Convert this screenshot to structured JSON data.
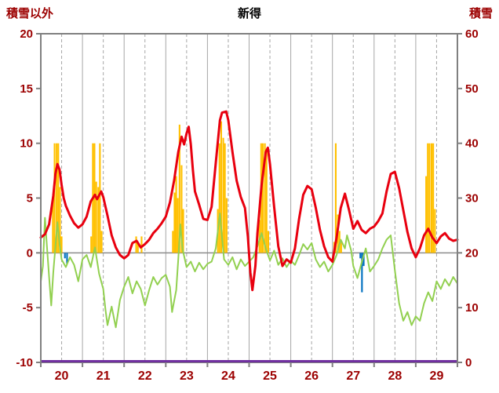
{
  "header": {
    "left_axis_title": "積雪以外",
    "title": "新得",
    "right_axis_title": "積雪"
  },
  "colors": {
    "background": "#ffffff",
    "axis_text": "#9c0000",
    "title_text": "#000000",
    "frame": "#808080",
    "grid_line": "#a6a6a6",
    "zero_line": "#8c8c8c",
    "sunshine_bar": "#ffc000",
    "precip_bar": "#0070c0",
    "temperature_line": "#e8000f",
    "green_line": "#92d050",
    "snow_line": "#7030a0"
  },
  "chart_data": {
    "type": "combo",
    "title": "新得",
    "x_range": [
      20,
      30
    ],
    "x_tick_labels": [
      "20",
      "21",
      "22",
      "23",
      "24",
      "25",
      "26",
      "27",
      "28",
      "29"
    ],
    "y_left": {
      "title": "積雪以外",
      "min": -10,
      "max": 20,
      "ticks": [
        20,
        15,
        10,
        5,
        0,
        -5,
        -10
      ]
    },
    "y_right": {
      "title": "積雪",
      "min": 0,
      "max": 60,
      "ticks": [
        60,
        50,
        40,
        30,
        20,
        10,
        0
      ]
    },
    "grid": {
      "vertical_solid_at_days": true,
      "vertical_dashed_at_half_days": true,
      "horizontal_zero_line": true,
      "legend": "none"
    },
    "series": [
      {
        "name": "sunshine",
        "type": "bar",
        "axis": "left",
        "color": "#ffc000",
        "bar_width_days": 0.04,
        "points": [
          [
            20.29,
            5
          ],
          [
            20.33,
            10
          ],
          [
            20.38,
            10
          ],
          [
            20.42,
            10
          ],
          [
            20.46,
            6
          ],
          [
            20.5,
            1.5
          ],
          [
            21.21,
            1.5
          ],
          [
            21.25,
            10
          ],
          [
            21.29,
            10
          ],
          [
            21.33,
            6.5
          ],
          [
            21.38,
            6
          ],
          [
            21.42,
            10
          ],
          [
            21.46,
            2
          ],
          [
            22.29,
            1.5
          ],
          [
            22.33,
            1
          ],
          [
            22.42,
            1.5
          ],
          [
            23.17,
            2
          ],
          [
            23.21,
            5.5
          ],
          [
            23.25,
            7
          ],
          [
            23.29,
            5
          ],
          [
            23.33,
            11.7
          ],
          [
            23.38,
            8
          ],
          [
            23.42,
            4
          ],
          [
            24.25,
            4
          ],
          [
            24.29,
            10
          ],
          [
            24.33,
            12
          ],
          [
            24.38,
            10.5
          ],
          [
            24.42,
            10
          ],
          [
            24.46,
            5
          ],
          [
            25.25,
            3
          ],
          [
            25.29,
            10
          ],
          [
            25.33,
            10
          ],
          [
            25.38,
            10
          ],
          [
            25.42,
            9.5
          ],
          [
            25.46,
            2
          ],
          [
            27.04,
            1
          ],
          [
            27.08,
            10
          ],
          [
            27.13,
            3.5
          ],
          [
            27.17,
            2
          ],
          [
            27.21,
            1
          ],
          [
            29.25,
            7
          ],
          [
            29.29,
            10
          ],
          [
            29.33,
            10
          ],
          [
            29.38,
            10
          ],
          [
            29.42,
            10
          ],
          [
            29.46,
            4
          ]
        ]
      },
      {
        "name": "precipitation",
        "type": "bar",
        "axis": "left",
        "color": "#0070c0",
        "bar_width_days": 0.04,
        "points": [
          [
            20.58,
            -0.5
          ],
          [
            20.63,
            -1.0
          ],
          [
            27.67,
            -0.5
          ],
          [
            27.71,
            -3.6
          ],
          [
            27.75,
            -1.2
          ]
        ]
      },
      {
        "name": "green-series",
        "type": "line",
        "axis": "left",
        "color": "#92d050",
        "width": 2,
        "points": [
          [
            20.0,
            -2.6
          ],
          [
            20.05,
            -1.2
          ],
          [
            20.1,
            3.2
          ],
          [
            20.15,
            0.4
          ],
          [
            20.2,
            -2.2
          ],
          [
            20.25,
            -4.8
          ],
          [
            20.3,
            -1.8
          ],
          [
            20.4,
            2.8
          ],
          [
            20.45,
            0.8
          ],
          [
            20.5,
            -0.6
          ],
          [
            20.6,
            -1.3
          ],
          [
            20.7,
            -0.4
          ],
          [
            20.8,
            -1.1
          ],
          [
            20.9,
            -2.6
          ],
          [
            21.0,
            -0.6
          ],
          [
            21.1,
            -0.2
          ],
          [
            21.2,
            -1.3
          ],
          [
            21.3,
            0.5
          ],
          [
            21.4,
            -1.9
          ],
          [
            21.5,
            -3.3
          ],
          [
            21.55,
            -5.1
          ],
          [
            21.6,
            -6.6
          ],
          [
            21.7,
            -4.9
          ],
          [
            21.8,
            -6.8
          ],
          [
            21.9,
            -4.3
          ],
          [
            22.0,
            -3.1
          ],
          [
            22.1,
            -2.2
          ],
          [
            22.2,
            -3.7
          ],
          [
            22.3,
            -2.6
          ],
          [
            22.4,
            -3.3
          ],
          [
            22.5,
            -4.8
          ],
          [
            22.6,
            -3.4
          ],
          [
            22.7,
            -2.2
          ],
          [
            22.8,
            -2.9
          ],
          [
            22.9,
            -2.3
          ],
          [
            23.0,
            -2.0
          ],
          [
            23.1,
            -3.1
          ],
          [
            23.15,
            -5.4
          ],
          [
            23.25,
            -3.4
          ],
          [
            23.3,
            -0.6
          ],
          [
            23.35,
            2.6
          ],
          [
            23.4,
            0.4
          ],
          [
            23.5,
            -1.3
          ],
          [
            23.6,
            -0.8
          ],
          [
            23.7,
            -1.7
          ],
          [
            23.8,
            -0.9
          ],
          [
            23.9,
            -1.5
          ],
          [
            24.0,
            -1.0
          ],
          [
            24.1,
            -0.8
          ],
          [
            24.2,
            0.4
          ],
          [
            24.3,
            3.6
          ],
          [
            24.35,
            1.4
          ],
          [
            24.4,
            -0.6
          ],
          [
            24.5,
            -1.1
          ],
          [
            24.6,
            -0.4
          ],
          [
            24.7,
            -1.5
          ],
          [
            24.8,
            -0.6
          ],
          [
            24.9,
            -1.2
          ],
          [
            25.0,
            -0.8
          ],
          [
            25.1,
            -0.4
          ],
          [
            25.2,
            0.6
          ],
          [
            25.3,
            1.8
          ],
          [
            25.4,
            0.4
          ],
          [
            25.5,
            -0.7
          ],
          [
            25.6,
            0.2
          ],
          [
            25.7,
            -1.1
          ],
          [
            25.8,
            -0.5
          ],
          [
            25.9,
            -1.3
          ],
          [
            26.0,
            -0.7
          ],
          [
            26.1,
            -1.1
          ],
          [
            26.2,
            -0.2
          ],
          [
            26.3,
            0.8
          ],
          [
            26.4,
            0.3
          ],
          [
            26.5,
            0.9
          ],
          [
            26.6,
            -0.6
          ],
          [
            26.7,
            -1.3
          ],
          [
            26.8,
            -0.8
          ],
          [
            26.9,
            -1.7
          ],
          [
            27.0,
            -1.1
          ],
          [
            27.1,
            -0.2
          ],
          [
            27.2,
            1.2
          ],
          [
            27.3,
            0.4
          ],
          [
            27.35,
            1.6
          ],
          [
            27.45,
            0.2
          ],
          [
            27.5,
            -1.2
          ],
          [
            27.6,
            -2.3
          ],
          [
            27.7,
            -0.9
          ],
          [
            27.8,
            0.4
          ],
          [
            27.9,
            -1.7
          ],
          [
            28.0,
            -1.2
          ],
          [
            28.1,
            -0.6
          ],
          [
            28.2,
            0.4
          ],
          [
            28.3,
            1.2
          ],
          [
            28.4,
            1.6
          ],
          [
            28.5,
            -1.6
          ],
          [
            28.6,
            -4.6
          ],
          [
            28.7,
            -6.2
          ],
          [
            28.8,
            -5.4
          ],
          [
            28.9,
            -6.6
          ],
          [
            29.0,
            -5.8
          ],
          [
            29.1,
            -6.2
          ],
          [
            29.2,
            -4.6
          ],
          [
            29.3,
            -3.6
          ],
          [
            29.4,
            -4.4
          ],
          [
            29.5,
            -2.6
          ],
          [
            29.6,
            -3.3
          ],
          [
            29.7,
            -2.4
          ],
          [
            29.8,
            -3.0
          ],
          [
            29.9,
            -2.2
          ],
          [
            30.0,
            -2.8
          ]
        ]
      },
      {
        "name": "temperature",
        "type": "line",
        "axis": "left",
        "color": "#e8000f",
        "width": 3,
        "points": [
          [
            20.0,
            1.4
          ],
          [
            20.1,
            1.7
          ],
          [
            20.2,
            2.6
          ],
          [
            20.3,
            5.2
          ],
          [
            20.35,
            7.2
          ],
          [
            20.4,
            8.1
          ],
          [
            20.45,
            7.6
          ],
          [
            20.5,
            6.2
          ],
          [
            20.55,
            5.0
          ],
          [
            20.6,
            4.3
          ],
          [
            20.7,
            3.4
          ],
          [
            20.8,
            2.7
          ],
          [
            20.9,
            2.3
          ],
          [
            21.0,
            2.6
          ],
          [
            21.1,
            3.3
          ],
          [
            21.2,
            4.7
          ],
          [
            21.3,
            5.3
          ],
          [
            21.35,
            4.9
          ],
          [
            21.45,
            5.6
          ],
          [
            21.5,
            5.1
          ],
          [
            21.6,
            3.4
          ],
          [
            21.7,
            1.6
          ],
          [
            21.8,
            0.5
          ],
          [
            21.9,
            -0.2
          ],
          [
            22.0,
            -0.5
          ],
          [
            22.1,
            -0.2
          ],
          [
            22.2,
            0.9
          ],
          [
            22.3,
            1.1
          ],
          [
            22.4,
            0.5
          ],
          [
            22.5,
            0.8
          ],
          [
            22.6,
            1.2
          ],
          [
            22.7,
            1.8
          ],
          [
            22.8,
            2.2
          ],
          [
            22.9,
            2.7
          ],
          [
            23.0,
            3.3
          ],
          [
            23.1,
            4.6
          ],
          [
            23.2,
            6.6
          ],
          [
            23.3,
            9.2
          ],
          [
            23.38,
            10.6
          ],
          [
            23.44,
            9.9
          ],
          [
            23.5,
            10.9
          ],
          [
            23.55,
            11.5
          ],
          [
            23.6,
            9.9
          ],
          [
            23.65,
            7.6
          ],
          [
            23.7,
            5.6
          ],
          [
            23.8,
            4.4
          ],
          [
            23.9,
            3.1
          ],
          [
            24.0,
            3.0
          ],
          [
            24.1,
            4.2
          ],
          [
            24.2,
            8.2
          ],
          [
            24.3,
            12.1
          ],
          [
            24.35,
            12.8
          ],
          [
            24.45,
            12.9
          ],
          [
            24.5,
            12.1
          ],
          [
            24.6,
            9.2
          ],
          [
            24.7,
            6.6
          ],
          [
            24.8,
            5.1
          ],
          [
            24.9,
            4.1
          ],
          [
            24.97,
            1.5
          ],
          [
            25.03,
            -1.8
          ],
          [
            25.08,
            -3.4
          ],
          [
            25.15,
            -1.2
          ],
          [
            25.2,
            1.8
          ],
          [
            25.3,
            6.2
          ],
          [
            25.4,
            9.2
          ],
          [
            25.45,
            9.6
          ],
          [
            25.5,
            8.1
          ],
          [
            25.6,
            4.2
          ],
          [
            25.7,
            0.6
          ],
          [
            25.8,
            -1.2
          ],
          [
            25.9,
            -0.6
          ],
          [
            26.0,
            -0.9
          ],
          [
            26.1,
            0.4
          ],
          [
            26.2,
            3.1
          ],
          [
            26.3,
            5.3
          ],
          [
            26.4,
            6.1
          ],
          [
            26.5,
            5.8
          ],
          [
            26.6,
            4.1
          ],
          [
            26.7,
            2.1
          ],
          [
            26.8,
            0.6
          ],
          [
            26.9,
            -0.4
          ],
          [
            27.0,
            -0.8
          ],
          [
            27.1,
            1.4
          ],
          [
            27.2,
            4.1
          ],
          [
            27.3,
            5.4
          ],
          [
            27.4,
            3.9
          ],
          [
            27.5,
            2.2
          ],
          [
            27.6,
            2.9
          ],
          [
            27.7,
            2.1
          ],
          [
            27.8,
            1.8
          ],
          [
            27.9,
            2.2
          ],
          [
            28.0,
            2.4
          ],
          [
            28.1,
            2.9
          ],
          [
            28.2,
            3.6
          ],
          [
            28.3,
            5.6
          ],
          [
            28.4,
            7.2
          ],
          [
            28.5,
            7.4
          ],
          [
            28.6,
            5.9
          ],
          [
            28.7,
            3.9
          ],
          [
            28.8,
            1.9
          ],
          [
            28.9,
            0.4
          ],
          [
            29.0,
            -0.4
          ],
          [
            29.1,
            0.4
          ],
          [
            29.2,
            1.6
          ],
          [
            29.3,
            2.2
          ],
          [
            29.4,
            1.4
          ],
          [
            29.5,
            0.9
          ],
          [
            29.6,
            1.5
          ],
          [
            29.7,
            1.8
          ],
          [
            29.8,
            1.3
          ],
          [
            29.9,
            1.1
          ],
          [
            30.0,
            1.2
          ]
        ]
      },
      {
        "name": "snow-depth",
        "type": "line",
        "axis": "right",
        "color": "#7030a0",
        "width": 3,
        "constant": 0,
        "over_frame": true
      }
    ]
  }
}
